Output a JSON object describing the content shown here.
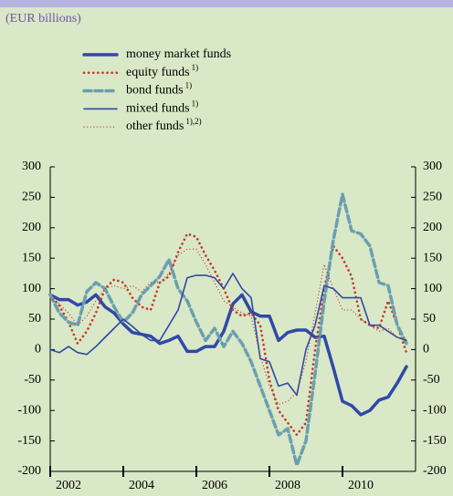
{
  "chart_data": {
    "type": "line",
    "subtitle": "(EUR billions)",
    "x": [
      2002,
      2002.25,
      2002.5,
      2002.75,
      2003,
      2003.25,
      2003.5,
      2003.75,
      2004,
      2004.25,
      2004.5,
      2004.75,
      2005,
      2005.25,
      2005.5,
      2005.75,
      2006,
      2006.25,
      2006.5,
      2006.75,
      2007,
      2007.25,
      2007.5,
      2007.75,
      2008,
      2008.25,
      2008.5,
      2008.75,
      2009,
      2009.25,
      2009.5,
      2009.75,
      2010,
      2010.25,
      2010.5,
      2010.75,
      2011,
      2011.25,
      2011.5,
      2011.75
    ],
    "xlim": [
      2002,
      2012
    ],
    "xticks": [
      2002,
      2004,
      2006,
      2008,
      2010
    ],
    "ylim": [
      -200,
      300
    ],
    "yticks": [
      -200,
      -150,
      -100,
      -50,
      0,
      50,
      100,
      150,
      200,
      250,
      300
    ],
    "y2lim": [
      -200,
      300
    ],
    "y2ticks": [
      -200,
      -150,
      -100,
      -50,
      0,
      50,
      100,
      150,
      200,
      250,
      300
    ],
    "series": [
      {
        "name": "money market funds",
        "color": "#3049a8",
        "style": "thick-solid",
        "values": [
          90,
          82,
          82,
          73,
          78,
          90,
          70,
          60,
          42,
          28,
          25,
          22,
          10,
          15,
          22,
          -3,
          -3,
          5,
          5,
          30,
          75,
          90,
          62,
          55,
          55,
          15,
          28,
          32,
          32,
          20,
          22,
          -30,
          -85,
          -92,
          -107,
          -100,
          -83,
          -78,
          -55,
          -28
        ]
      },
      {
        "name": "equity funds",
        "note": "1)",
        "color": "#c0392b",
        "style": "thick-dotted",
        "values": [
          90,
          72,
          45,
          10,
          30,
          60,
          100,
          115,
          110,
          85,
          70,
          65,
          110,
          120,
          160,
          190,
          185,
          155,
          130,
          100,
          65,
          55,
          60,
          40,
          -50,
          -100,
          -120,
          -140,
          -120,
          0,
          100,
          170,
          150,
          120,
          50,
          40,
          35,
          80,
          40,
          -5
        ]
      },
      {
        "name": "bond funds",
        "note": "1)",
        "color": "#6a9fb0",
        "style": "thick-dashed",
        "values": [
          90,
          60,
          45,
          40,
          95,
          110,
          100,
          70,
          45,
          60,
          90,
          105,
          120,
          148,
          100,
          80,
          45,
          15,
          35,
          5,
          30,
          10,
          -20,
          -60,
          -100,
          -140,
          -130,
          -190,
          -150,
          -40,
          80,
          180,
          255,
          195,
          190,
          170,
          110,
          105,
          40,
          10
        ]
      },
      {
        "name": "mixed funds",
        "note": "1)",
        "color": "#3049a8",
        "style": "thin-solid",
        "values": [
          0,
          -5,
          5,
          -5,
          -8,
          5,
          20,
          35,
          50,
          38,
          25,
          15,
          15,
          40,
          65,
          118,
          122,
          122,
          118,
          100,
          125,
          100,
          85,
          -15,
          -20,
          -60,
          -55,
          -75,
          0,
          40,
          105,
          100,
          85,
          85,
          85,
          40,
          40,
          30,
          20,
          15
        ]
      },
      {
        "name": "other funds",
        "note": "1),2)",
        "color": "#c0392b",
        "style": "thin-dotted",
        "values": [
          85,
          75,
          60,
          40,
          55,
          80,
          100,
          105,
          100,
          105,
          95,
          110,
          110,
          125,
          155,
          165,
          165,
          140,
          110,
          80,
          70,
          60,
          55,
          -10,
          -60,
          -90,
          -85,
          -70,
          -20,
          60,
          140,
          100,
          65,
          65,
          50,
          40,
          30,
          35,
          20,
          15
        ]
      }
    ]
  }
}
